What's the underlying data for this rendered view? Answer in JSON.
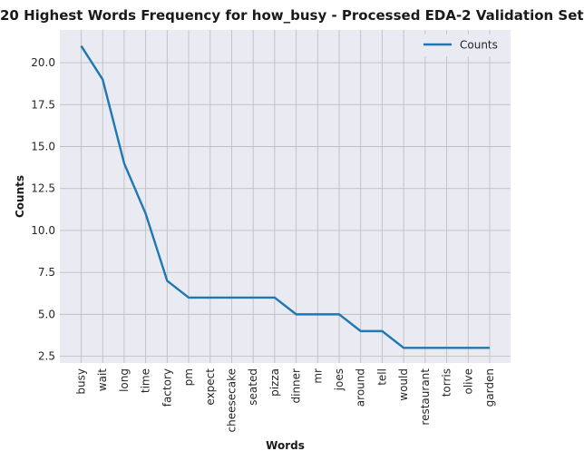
{
  "chart_data": {
    "type": "line",
    "title": "20 Highest Words Frequency for how_busy - Processed EDA-2 Validation Set",
    "xlabel": "Words",
    "ylabel": "Counts",
    "categories": [
      "busy",
      "wait",
      "long",
      "time",
      "factory",
      "pm",
      "expect",
      "cheesecake",
      "seated",
      "pizza",
      "dinner",
      "mr",
      "joes",
      "around",
      "tell",
      "would",
      "restaurant",
      "torris",
      "olive",
      "garden"
    ],
    "series": [
      {
        "name": "Counts",
        "values": [
          21,
          19,
          14,
          11,
          7,
          6,
          6,
          6,
          6,
          6,
          5,
          5,
          5,
          4,
          4,
          3,
          3,
          3,
          3,
          3
        ]
      }
    ],
    "ylim": [
      2.1,
      21.95
    ],
    "yticks": [
      "2.5",
      "5.0",
      "7.5",
      "10.0",
      "12.5",
      "15.0",
      "17.5",
      "20.0"
    ],
    "grid": true,
    "legend_position": "top-right",
    "colors": {
      "line": "#1f77b4",
      "background": "#eaeaf2",
      "grid": "#c0c0c0"
    }
  }
}
